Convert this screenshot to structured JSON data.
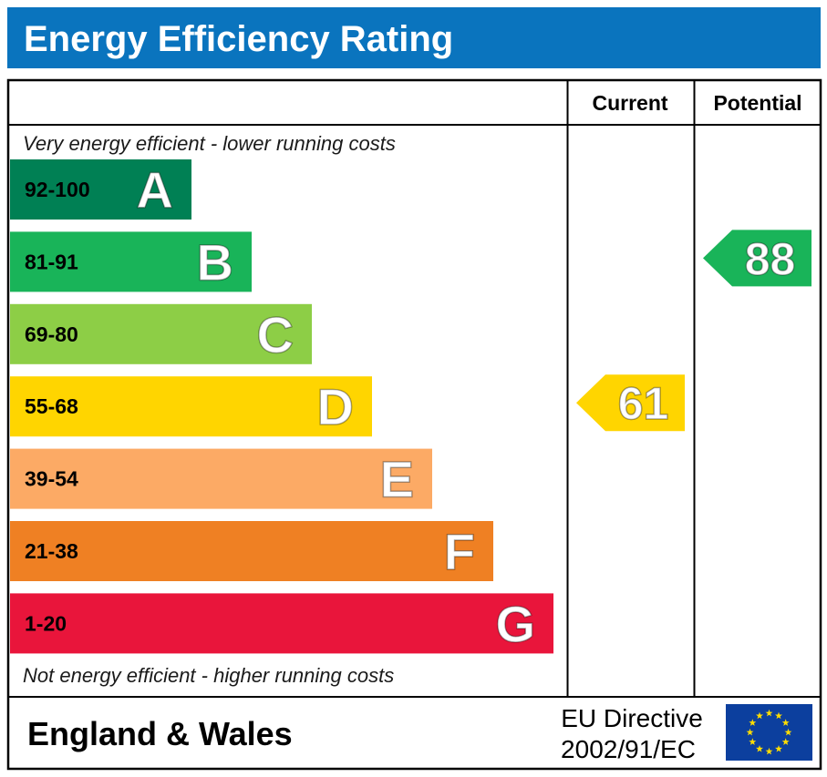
{
  "title": "Energy Efficiency Rating",
  "columns": {
    "current": "Current",
    "potential": "Potential"
  },
  "notes": {
    "top": "Very energy efficient - lower running costs",
    "bottom": "Not energy efficient - higher running costs"
  },
  "footer": {
    "region": "England & Wales",
    "directive_line1": "EU Directive",
    "directive_line2": "2002/91/EC",
    "flag_icon": "eu-flag-icon"
  },
  "chart_data": {
    "type": "bar",
    "categories": [
      "A",
      "B",
      "C",
      "D",
      "E",
      "F",
      "G"
    ],
    "ranges": [
      "92-100",
      "81-91",
      "69-80",
      "55-68",
      "39-54",
      "21-38",
      "1-20"
    ],
    "colors": [
      "#008054",
      "#19b459",
      "#8dce46",
      "#ffd500",
      "#fcaa65",
      "#ef8023",
      "#e9153b"
    ],
    "current": {
      "value": 61,
      "band": "D",
      "color": "#ffd500"
    },
    "potential": {
      "value": 88,
      "band": "B",
      "color": "#19b459"
    }
  }
}
